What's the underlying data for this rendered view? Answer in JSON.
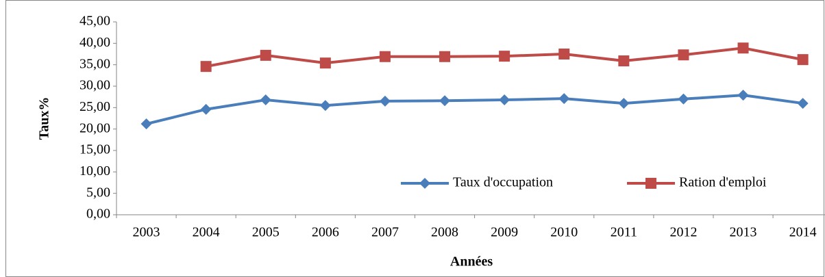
{
  "chart_data": {
    "type": "line",
    "x_label": "Années",
    "y_label": "Taux%",
    "categories": [
      "2003",
      "2004",
      "2005",
      "2006",
      "2007",
      "2008",
      "2009",
      "2010",
      "2011",
      "2012",
      "2013",
      "2014"
    ],
    "series": [
      {
        "name": "Taux d'occupation",
        "color": "#4a7ebb",
        "marker": "diamond",
        "values": [
          21.2,
          24.6,
          26.8,
          25.5,
          26.5,
          26.6,
          26.8,
          27.1,
          26.0,
          27.0,
          27.9,
          26.0
        ]
      },
      {
        "name": "Ration d'emploi",
        "color": "#be4b48",
        "marker": "square",
        "values": [
          null,
          34.6,
          37.2,
          35.4,
          36.9,
          36.9,
          37.0,
          37.5,
          35.9,
          37.3,
          38.9,
          36.2
        ]
      }
    ],
    "ylim": [
      0,
      45
    ],
    "yticks": [
      {
        "value": 0,
        "label": "0,00"
      },
      {
        "value": 5,
        "label": "5,00"
      },
      {
        "value": 10,
        "label": "10,00"
      },
      {
        "value": 15,
        "label": "15,00"
      },
      {
        "value": 20,
        "label": "20,00"
      },
      {
        "value": 25,
        "label": "25,00"
      },
      {
        "value": 30,
        "label": "30,00"
      },
      {
        "value": 35,
        "label": "35,00"
      },
      {
        "value": 40,
        "label": "40,00"
      },
      {
        "value": 45,
        "label": "45,00"
      }
    ],
    "grid": false,
    "legend": "lower right"
  }
}
